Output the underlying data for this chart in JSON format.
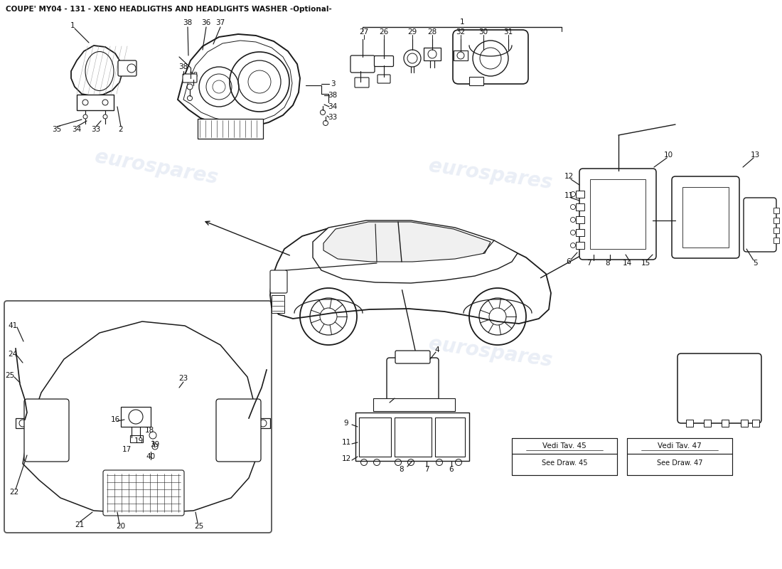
{
  "title": "COUPE' MY04 - 131 - XENO HEADLIGTHS AND HEADLIGHTS WASHER -Optional-",
  "title_fontsize": 7.5,
  "background_color": "#ffffff",
  "line_color": "#1a1a1a",
  "text_color": "#111111",
  "watermark_text": "eurospares",
  "watermark_color": "#c8d4e8",
  "watermark_alpha": 0.38,
  "note1_title": "Vedi Tav. 45",
  "note1_sub": "See Draw. 45",
  "note2_title": "Vedi Tav. 47",
  "note2_sub": "See Draw. 47"
}
